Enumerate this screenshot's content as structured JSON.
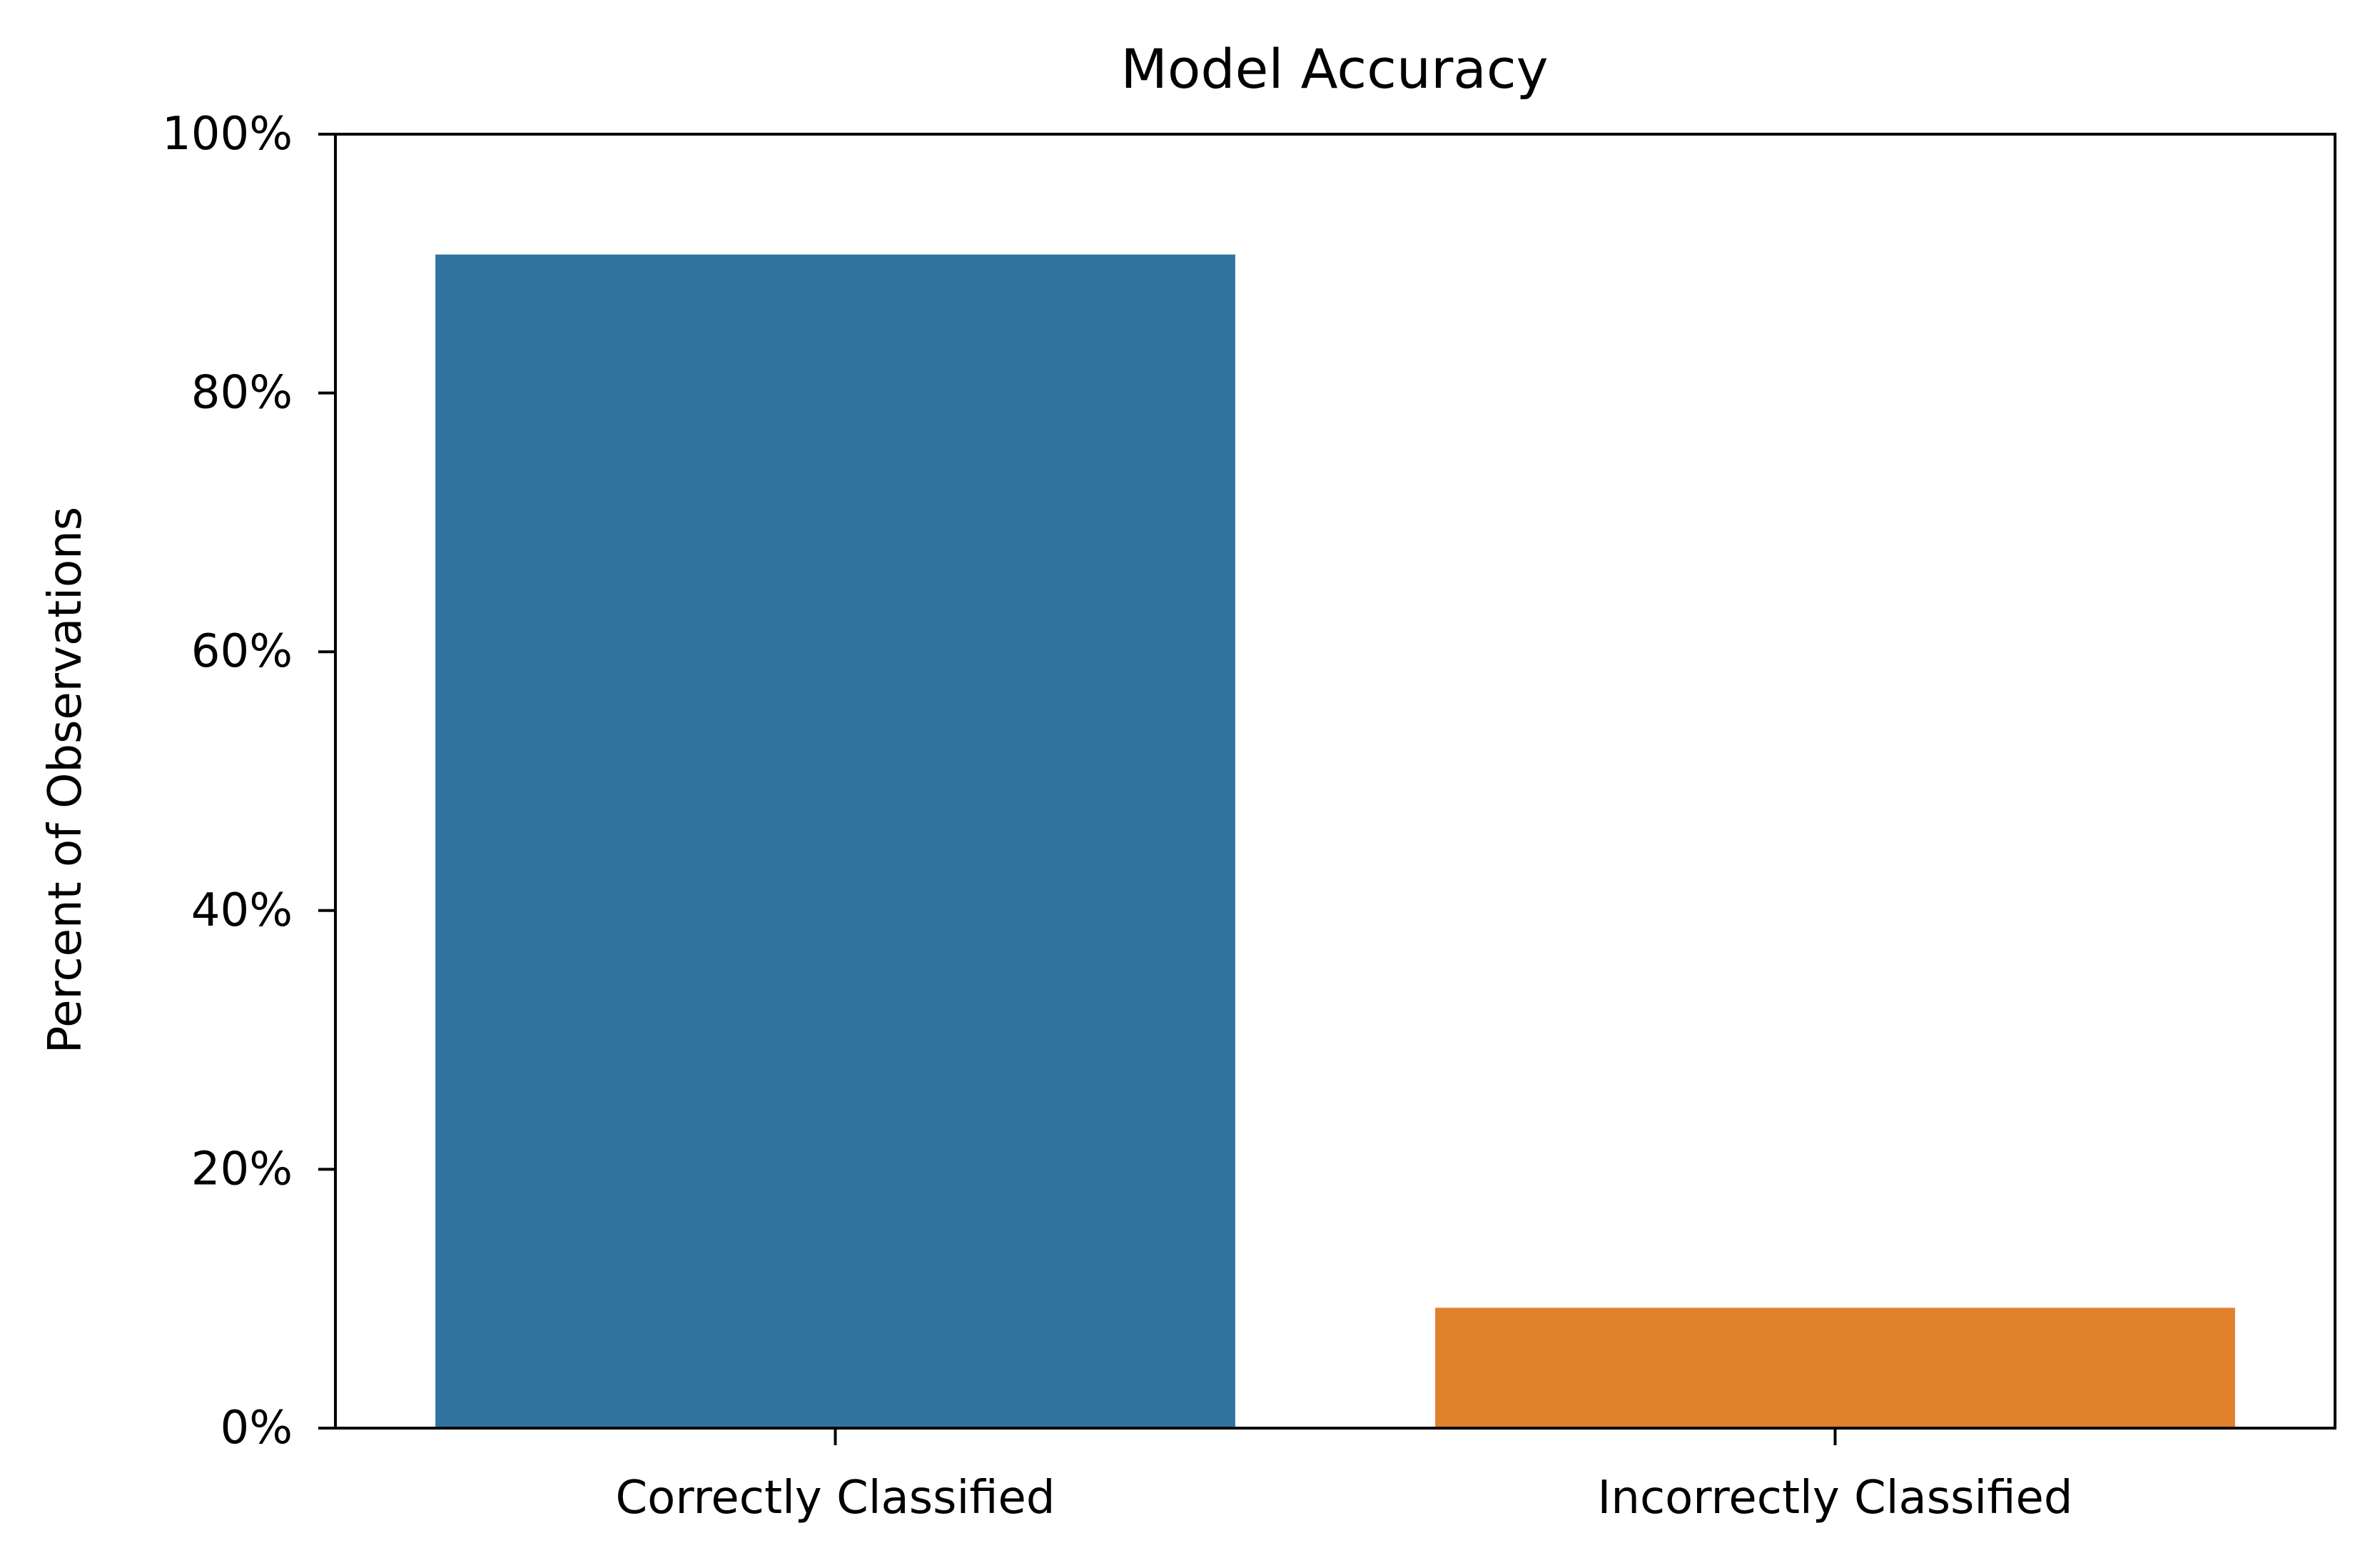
{
  "chart_data": {
    "type": "bar",
    "title": "Model Accuracy",
    "xlabel": "",
    "ylabel": "Percent of Observations",
    "categories": [
      "Correctly Classified",
      "Incorrectly Classified"
    ],
    "values": [
      90.7,
      9.3
    ],
    "colors": [
      "#3274a1",
      "#e1812c"
    ],
    "ylim": [
      0,
      100
    ],
    "yticks": [
      0,
      20,
      40,
      60,
      80,
      100
    ],
    "ytick_labels": [
      "0%",
      "20%",
      "40%",
      "60%",
      "80%",
      "100%"
    ],
    "grid": false,
    "legend": "none"
  }
}
